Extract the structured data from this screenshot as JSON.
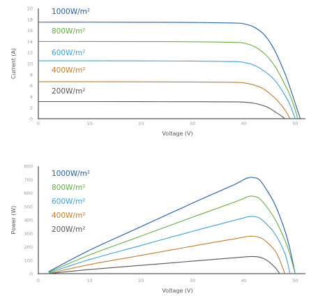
{
  "chart_data": [
    {
      "type": "line",
      "title": "",
      "xlabel": "Voltage (V)",
      "ylabel": "Current (A)",
      "xlim": [
        0,
        52
      ],
      "ylim": [
        0,
        20
      ],
      "xticks": [
        "0",
        "10",
        "20",
        "30",
        "40",
        "50"
      ],
      "yticks": [
        "0",
        "2",
        "4",
        "6",
        "8",
        "10",
        "12",
        "14",
        "16",
        "18",
        "20"
      ],
      "legend_placement": "left, next to each line",
      "series": [
        {
          "name": "1000W/m²",
          "color": "#1f5aa6",
          "x": [
            0,
            10,
            20,
            30,
            38,
            40,
            42,
            44,
            46,
            48,
            49,
            50,
            51
          ],
          "y": [
            17.5,
            17.5,
            17.48,
            17.45,
            17.35,
            17.2,
            16.6,
            15.2,
            12.4,
            8.2,
            5.6,
            2.8,
            0
          ]
        },
        {
          "name": "800W/m²",
          "color": "#66ad3f",
          "x": [
            0,
            10,
            20,
            30,
            38,
            40,
            42,
            44,
            46,
            48,
            49,
            50,
            50.5
          ],
          "y": [
            14.0,
            14.0,
            13.98,
            13.95,
            13.85,
            13.7,
            13.1,
            11.8,
            9.6,
            6.2,
            4.2,
            1.6,
            0
          ]
        },
        {
          "name": "600W/m²",
          "color": "#3aa2d6",
          "x": [
            0,
            10,
            20,
            30,
            38,
            40,
            42,
            44,
            46,
            48,
            49,
            50
          ],
          "y": [
            10.5,
            10.5,
            10.48,
            10.45,
            10.35,
            10.2,
            9.7,
            8.6,
            7.0,
            4.3,
            2.5,
            0
          ]
        },
        {
          "name": "400W/m²",
          "color": "#c27c2b",
          "x": [
            0,
            10,
            20,
            30,
            38,
            40,
            42,
            44,
            46,
            47,
            48,
            49
          ],
          "y": [
            6.7,
            6.7,
            6.68,
            6.65,
            6.6,
            6.5,
            6.1,
            5.3,
            3.8,
            2.8,
            1.6,
            0
          ]
        },
        {
          "name": "200W/m²",
          "color": "#555555",
          "x": [
            0,
            10,
            20,
            30,
            38,
            40,
            42,
            44,
            45,
            46,
            47,
            48
          ],
          "y": [
            3.1,
            3.1,
            3.09,
            3.08,
            3.05,
            3.0,
            2.8,
            2.3,
            1.9,
            1.3,
            0.7,
            0
          ]
        }
      ]
    },
    {
      "type": "line",
      "title": "",
      "xlabel": "Voltage (V)",
      "ylabel": "Power (W)",
      "xlim": [
        0,
        52
      ],
      "ylim": [
        0,
        800
      ],
      "xticks": [
        "0",
        "10",
        "20",
        "30",
        "40",
        "50"
      ],
      "yticks": [
        "0",
        "100",
        "200",
        "300",
        "400",
        "500",
        "600",
        "700",
        "800"
      ],
      "legend_placement": "top-left",
      "series": [
        {
          "name": "1000W/m²",
          "color": "#1f5aa6",
          "x": [
            2,
            10,
            20,
            30,
            38,
            40,
            41,
            42,
            43,
            44,
            46,
            48,
            49,
            50
          ],
          "y": [
            15,
            175,
            350,
            525,
            660,
            700,
            715,
            715,
            700,
            650,
            520,
            320,
            180,
            0
          ]
        },
        {
          "name": "800W/m²",
          "color": "#66ad3f",
          "x": [
            2,
            10,
            20,
            30,
            38,
            40,
            41,
            42,
            43,
            44,
            46,
            48,
            49,
            50
          ],
          "y": [
            10,
            140,
            280,
            420,
            530,
            560,
            575,
            575,
            560,
            520,
            410,
            250,
            140,
            0
          ]
        },
        {
          "name": "600W/m²",
          "color": "#3aa2d6",
          "x": [
            2,
            10,
            20,
            30,
            38,
            40,
            41,
            42,
            43,
            44,
            46,
            48,
            49
          ],
          "y": [
            5,
            105,
            210,
            315,
            395,
            415,
            425,
            425,
            415,
            385,
            300,
            150,
            0
          ]
        },
        {
          "name": "400W/m²",
          "color": "#c27c2b",
          "x": [
            2,
            10,
            20,
            30,
            38,
            40,
            41,
            42,
            43,
            44,
            46,
            47,
            48
          ],
          "y": [
            0,
            68,
            136,
            205,
            258,
            272,
            278,
            278,
            270,
            250,
            175,
            100,
            0
          ]
        },
        {
          "name": "200W/m²",
          "color": "#555555",
          "x": [
            2,
            10,
            20,
            30,
            38,
            40,
            41,
            42,
            43,
            44,
            45,
            46,
            47
          ],
          "y": [
            0,
            31,
            62,
            93,
            118,
            124,
            127,
            127,
            123,
            110,
            85,
            50,
            0
          ]
        }
      ]
    }
  ]
}
